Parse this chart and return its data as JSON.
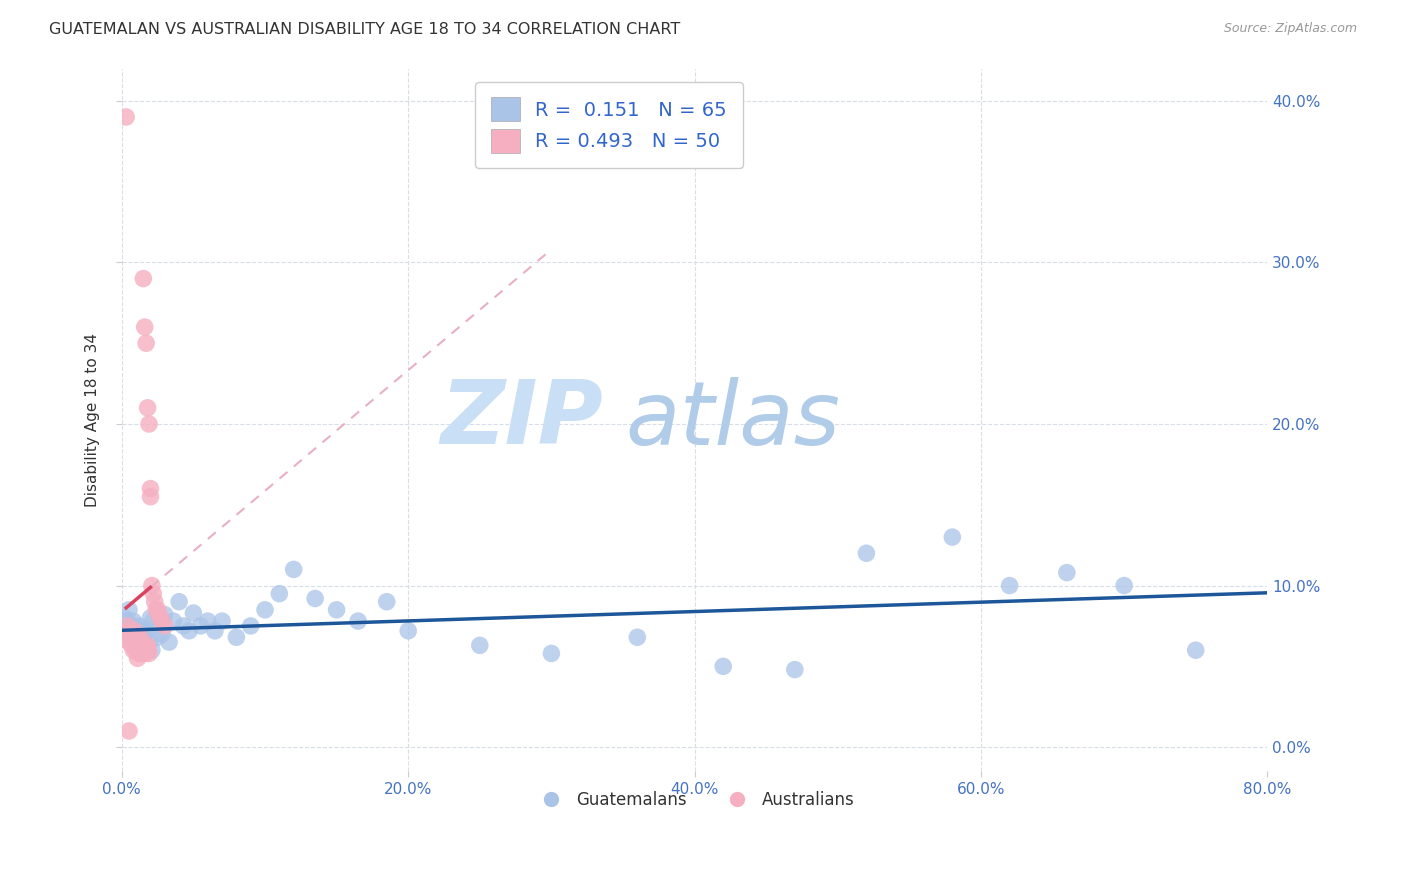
{
  "title": "GUATEMALAN VS AUSTRALIAN DISABILITY AGE 18 TO 34 CORRELATION CHART",
  "source": "Source: ZipAtlas.com",
  "ylabel": "Disability Age 18 to 34",
  "xlim": [
    0.0,
    0.8
  ],
  "ylim": [
    -0.015,
    0.42
  ],
  "xticks": [
    0.0,
    0.2,
    0.4,
    0.6,
    0.8
  ],
  "yticks": [
    0.0,
    0.1,
    0.2,
    0.3,
    0.4
  ],
  "background_color": "#ffffff",
  "grid_color": "#d8dde8",
  "title_fontsize": 11.5,
  "axis_label_fontsize": 11,
  "tick_fontsize": 11,
  "legend_R_blue": "0.151",
  "legend_N_blue": "65",
  "legend_R_pink": "0.493",
  "legend_N_pink": "50",
  "blue_color": "#aac4e8",
  "blue_line_color": "#1e5799",
  "pink_color": "#f5afc0",
  "pink_line_color": "#d9435e",
  "pink_dash_color": "#e8b0c0",
  "watermark_zip_color": "#c8dff5",
  "watermark_atlas_color": "#b8d0e8",
  "blue_scatter_x": [
    0.002,
    0.003,
    0.004,
    0.005,
    0.005,
    0.006,
    0.007,
    0.007,
    0.008,
    0.008,
    0.009,
    0.009,
    0.01,
    0.01,
    0.011,
    0.011,
    0.012,
    0.012,
    0.013,
    0.013,
    0.014,
    0.014,
    0.015,
    0.015,
    0.016,
    0.017,
    0.018,
    0.019,
    0.02,
    0.021,
    0.022,
    0.025,
    0.028,
    0.03,
    0.033,
    0.036,
    0.04,
    0.043,
    0.047,
    0.05,
    0.055,
    0.06,
    0.065,
    0.07,
    0.08,
    0.09,
    0.1,
    0.11,
    0.12,
    0.135,
    0.15,
    0.165,
    0.185,
    0.2,
    0.25,
    0.3,
    0.36,
    0.42,
    0.47,
    0.52,
    0.58,
    0.62,
    0.66,
    0.7,
    0.75
  ],
  "blue_scatter_y": [
    0.08,
    0.072,
    0.078,
    0.085,
    0.075,
    0.07,
    0.068,
    0.075,
    0.073,
    0.078,
    0.072,
    0.065,
    0.07,
    0.074,
    0.068,
    0.063,
    0.071,
    0.075,
    0.065,
    0.069,
    0.062,
    0.073,
    0.068,
    0.06,
    0.065,
    0.072,
    0.06,
    0.065,
    0.08,
    0.06,
    0.078,
    0.068,
    0.07,
    0.082,
    0.065,
    0.078,
    0.09,
    0.075,
    0.072,
    0.083,
    0.075,
    0.078,
    0.072,
    0.078,
    0.068,
    0.075,
    0.085,
    0.095,
    0.11,
    0.092,
    0.085,
    0.078,
    0.09,
    0.072,
    0.063,
    0.058,
    0.068,
    0.05,
    0.048,
    0.12,
    0.13,
    0.1,
    0.108,
    0.1,
    0.06
  ],
  "pink_scatter_x": [
    0.003,
    0.004,
    0.005,
    0.005,
    0.005,
    0.006,
    0.006,
    0.007,
    0.007,
    0.008,
    0.008,
    0.009,
    0.009,
    0.01,
    0.01,
    0.01,
    0.011,
    0.011,
    0.012,
    0.012,
    0.012,
    0.013,
    0.013,
    0.013,
    0.014,
    0.014,
    0.015,
    0.015,
    0.015,
    0.016,
    0.016,
    0.017,
    0.017,
    0.018,
    0.018,
    0.018,
    0.019,
    0.019,
    0.02,
    0.02,
    0.021,
    0.022,
    0.023,
    0.024,
    0.025,
    0.026,
    0.027,
    0.028,
    0.03,
    0.005
  ],
  "pink_scatter_y": [
    0.39,
    0.075,
    0.068,
    0.072,
    0.065,
    0.07,
    0.065,
    0.068,
    0.063,
    0.06,
    0.068,
    0.062,
    0.072,
    0.065,
    0.06,
    0.063,
    0.06,
    0.055,
    0.065,
    0.063,
    0.058,
    0.068,
    0.065,
    0.06,
    0.062,
    0.058,
    0.29,
    0.063,
    0.06,
    0.26,
    0.058,
    0.25,
    0.062,
    0.063,
    0.06,
    0.21,
    0.2,
    0.058,
    0.16,
    0.155,
    0.1,
    0.095,
    0.09,
    0.085,
    0.085,
    0.082,
    0.08,
    0.078,
    0.075,
    0.01
  ],
  "pink_line_x0": 0.003,
  "pink_line_x_solid_end": 0.02,
  "pink_line_x_dash_end": 0.3
}
